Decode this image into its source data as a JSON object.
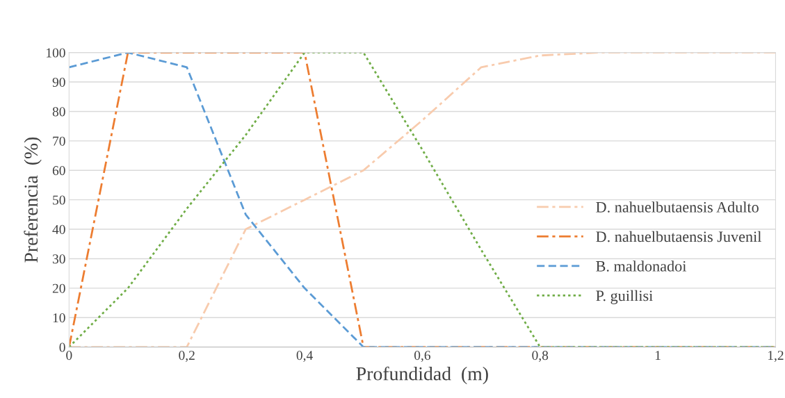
{
  "chart_data": {
    "type": "line",
    "xlabel": "Profundidad  (m)",
    "ylabel": "Preferencia  (%)",
    "x": [
      0,
      0.1,
      0.2,
      0.3,
      0.4,
      0.5,
      0.6,
      0.7,
      0.8,
      0.9,
      1,
      1.1,
      1.2
    ],
    "series": [
      {
        "name": "D. nahuelbutaensis Adulto",
        "color": "#f8cbad",
        "line_style": "dashdot",
        "values": [
          0,
          0,
          0,
          40,
          50,
          60,
          77,
          95,
          99,
          100,
          100,
          100,
          100
        ]
      },
      {
        "name": "D. nahuelbutaensis Juvenil",
        "color": "#ed7d31",
        "line_style": "dashdot",
        "values": [
          0,
          100,
          100,
          100,
          100,
          0,
          0,
          0,
          0,
          0,
          0,
          0,
          0
        ]
      },
      {
        "name": "B. maldonadoi",
        "color": "#5b9bd5",
        "line_style": "dashed",
        "values": [
          95,
          100,
          95,
          45,
          20,
          0,
          0,
          0,
          0,
          0,
          0,
          0,
          0
        ]
      },
      {
        "name": "P. guillisi",
        "color": "#70ad47",
        "line_style": "dotted",
        "values": [
          0,
          20,
          47,
          72,
          100,
          100,
          67,
          33,
          0,
          0,
          0,
          0,
          0
        ]
      }
    ],
    "xlim": [
      0,
      1.2
    ],
    "xticks": [
      0,
      {
        "value": 0.2,
        "label": "0,2"
      },
      {
        "value": 0.4,
        "label": "0,4"
      },
      {
        "value": 0.6,
        "label": "0,6"
      },
      {
        "value": 0.8,
        "label": "0,8"
      },
      1,
      {
        "value": 1.2,
        "label": "1,2"
      }
    ],
    "ylim": [
      0,
      100
    ],
    "yticks": [
      0,
      10,
      20,
      30,
      40,
      50,
      60,
      70,
      80,
      90,
      100
    ],
    "grid": "y",
    "legend": "right",
    "marker": "none"
  }
}
